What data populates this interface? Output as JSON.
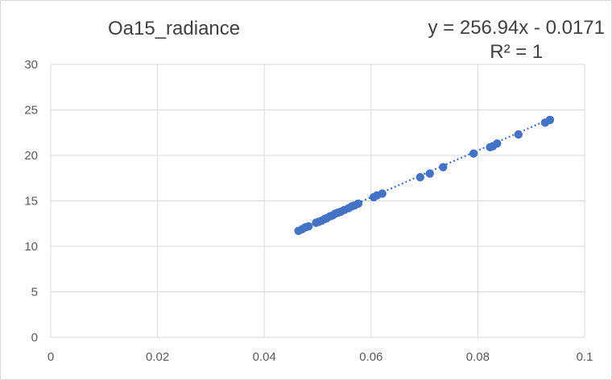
{
  "chart_data": {
    "type": "scatter",
    "title": "Oa15_radiance",
    "xlabel": "",
    "ylabel": "",
    "xlim": [
      0,
      0.1
    ],
    "ylim": [
      0,
      30
    ],
    "x_ticks": [
      "0",
      "0.02",
      "0.04",
      "0.06",
      "0.08",
      "0.1"
    ],
    "y_ticks": [
      "0",
      "5",
      "10",
      "15",
      "20",
      "25",
      "30"
    ],
    "grid": true,
    "legend": "none",
    "trendline": {
      "type": "linear",
      "slope": 256.94,
      "intercept": -0.0171,
      "style": "dotted",
      "equation_label": "y = 256.94x - 0.0171",
      "r2_label": "R² = 1"
    },
    "series": [
      {
        "color": "#4472c4",
        "points": [
          [
            0.0464,
            11.7
          ],
          [
            0.0471,
            11.9
          ],
          [
            0.0477,
            12.1
          ],
          [
            0.0483,
            12.2
          ],
          [
            0.0497,
            12.6
          ],
          [
            0.0502,
            12.7
          ],
          [
            0.0507,
            12.8
          ],
          [
            0.0513,
            13.0
          ],
          [
            0.0517,
            13.1
          ],
          [
            0.0523,
            13.3
          ],
          [
            0.0528,
            13.4
          ],
          [
            0.0533,
            13.6
          ],
          [
            0.0538,
            13.7
          ],
          [
            0.0543,
            13.8
          ],
          [
            0.055,
            14.0
          ],
          [
            0.0558,
            14.2
          ],
          [
            0.0564,
            14.4
          ],
          [
            0.0569,
            14.5
          ],
          [
            0.0576,
            14.7
          ],
          [
            0.0605,
            15.4
          ],
          [
            0.0611,
            15.6
          ],
          [
            0.0621,
            15.8
          ],
          [
            0.0692,
            17.6
          ],
          [
            0.071,
            18.0
          ],
          [
            0.0735,
            18.7
          ],
          [
            0.0792,
            20.2
          ],
          [
            0.0823,
            20.9
          ],
          [
            0.0828,
            21.0
          ],
          [
            0.0836,
            21.3
          ],
          [
            0.0876,
            22.3
          ],
          [
            0.0926,
            23.6
          ],
          [
            0.0935,
            23.9
          ]
        ]
      }
    ]
  }
}
